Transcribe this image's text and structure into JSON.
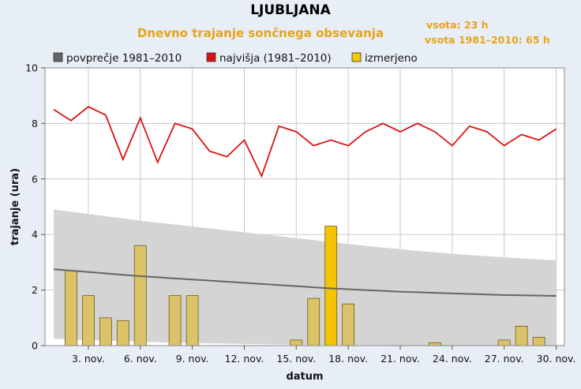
{
  "chart_data": {
    "type": "bar",
    "title": "LJUBLJANA",
    "subtitle": "Dnevno trajanje sončnega obsevanja",
    "sums": [
      "vsota: 23 h",
      "vsota 1981–2010: 65 h"
    ],
    "xlabel": "datum",
    "ylabel": "trajanje (ura)",
    "ylim": [
      0,
      10
    ],
    "yticks": [
      "0",
      "2",
      "4",
      "6",
      "8",
      "10"
    ],
    "xticks": [
      "3. nov.",
      "6. nov.",
      "9. nov.",
      "12. nov.",
      "15. nov.",
      "18. nov.",
      "21. nov.",
      "24. nov.",
      "27. nov.",
      "30. nov."
    ],
    "xtick_days": [
      3,
      6,
      9,
      12,
      15,
      18,
      21,
      24,
      27,
      30
    ],
    "xlim": [
      1,
      30
    ],
    "grid": true,
    "legend_position": "top",
    "colors": {
      "background": "#e8eef6",
      "plot_bg": "#ffffff",
      "grid": "#c8c8c8",
      "band": "#d4d4d4",
      "average": "#666666",
      "max": "#dd1111",
      "bar_fill": "#dcc36a",
      "bar_fill_max": "#f2c500",
      "bar_stroke": "#6b5a1e",
      "accent": "#e8a317"
    },
    "legend": [
      {
        "label": "povprečje 1981–2010",
        "color": "#666666"
      },
      {
        "label": "najvišja (1981–2010)",
        "color": "#dd1111"
      },
      {
        "label": "izmerjeno",
        "color": "#f2c500"
      }
    ],
    "days": [
      1,
      2,
      3,
      4,
      5,
      6,
      7,
      8,
      9,
      10,
      11,
      12,
      13,
      14,
      15,
      16,
      17,
      18,
      19,
      20,
      21,
      22,
      23,
      24,
      25,
      26,
      27,
      28,
      29,
      30
    ],
    "series": [
      {
        "name": "najvišja (1981–2010)",
        "type": "line",
        "values": [
          8.5,
          8.1,
          8.6,
          8.3,
          6.7,
          8.2,
          6.6,
          8.0,
          7.8,
          7.0,
          6.8,
          7.4,
          6.1,
          7.9,
          7.7,
          7.2,
          7.4,
          7.2,
          7.7,
          8.0,
          7.7,
          8.0,
          7.7,
          7.2,
          7.9,
          7.7,
          7.2,
          7.6,
          7.4,
          7.8
        ]
      },
      {
        "name": "povprečje 1981–2010",
        "type": "line",
        "values": [
          2.75,
          2.7,
          2.65,
          2.6,
          2.55,
          2.5,
          2.46,
          2.42,
          2.38,
          2.34,
          2.3,
          2.26,
          2.22,
          2.18,
          2.14,
          2.1,
          2.06,
          2.03,
          2.0,
          1.97,
          1.94,
          1.92,
          1.9,
          1.88,
          1.86,
          1.84,
          1.82,
          1.81,
          1.8,
          1.79
        ]
      },
      {
        "name": "izmerjeno",
        "type": "bar",
        "values": [
          0,
          2.7,
          1.8,
          1.0,
          0.9,
          3.6,
          0,
          1.8,
          1.8,
          0,
          0,
          0,
          0,
          0,
          0.2,
          1.7,
          4.3,
          1.5,
          0,
          0,
          0,
          0,
          0.1,
          0,
          0,
          0,
          0.2,
          0.7,
          0.3,
          0
        ]
      }
    ],
    "range_band": {
      "upper": [
        4.9,
        4.82,
        4.74,
        4.66,
        4.58,
        4.5,
        4.43,
        4.36,
        4.29,
        4.22,
        4.15,
        4.08,
        4.01,
        3.94,
        3.87,
        3.8,
        3.73,
        3.66,
        3.59,
        3.53,
        3.47,
        3.41,
        3.36,
        3.31,
        3.26,
        3.22,
        3.18,
        3.14,
        3.1,
        3.07
      ],
      "lower": [
        0.25,
        0.22,
        0.2,
        0.18,
        0.16,
        0.14,
        0.12,
        0.1,
        0.09,
        0.08,
        0.07,
        0.06,
        0.05,
        0.04,
        0.04,
        0.03,
        0.03,
        0.02,
        0.02,
        0.02,
        0.01,
        0.01,
        0.01,
        0.01,
        0,
        0,
        0,
        0,
        0,
        0
      ]
    }
  }
}
